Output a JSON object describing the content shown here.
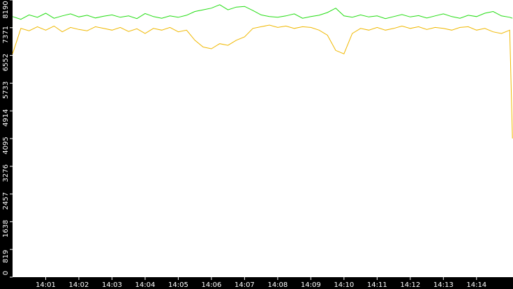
{
  "chart_data": {
    "type": "line",
    "x": [
      "14:00:00",
      "14:00:15",
      "14:00:30",
      "14:00:45",
      "14:01:00",
      "14:01:15",
      "14:01:30",
      "14:01:45",
      "14:02:00",
      "14:02:15",
      "14:02:30",
      "14:02:45",
      "14:03:00",
      "14:03:15",
      "14:03:30",
      "14:03:45",
      "14:04:00",
      "14:04:15",
      "14:04:30",
      "14:04:45",
      "14:05:00",
      "14:05:15",
      "14:05:30",
      "14:05:45",
      "14:06:00",
      "14:06:15",
      "14:06:30",
      "14:06:45",
      "14:07:00",
      "14:07:15",
      "14:07:30",
      "14:07:45",
      "14:08:00",
      "14:08:15",
      "14:08:30",
      "14:08:45",
      "14:09:00",
      "14:09:15",
      "14:09:30",
      "14:09:45",
      "14:10:00",
      "14:10:15",
      "14:10:30",
      "14:10:45",
      "14:11:00",
      "14:11:15",
      "14:11:30",
      "14:11:45",
      "14:12:00",
      "14:12:15",
      "14:12:30",
      "14:12:45",
      "14:13:00",
      "14:13:15",
      "14:13:30",
      "14:13:45",
      "14:14:00",
      "14:14:15",
      "14:14:30",
      "14:14:45",
      "14:15:00",
      "14:15:05"
    ],
    "series": [
      {
        "color": "#22dd11",
        "values": [
          7700,
          7620,
          7750,
          7680,
          7800,
          7650,
          7720,
          7780,
          7690,
          7740,
          7660,
          7710,
          7750,
          7680,
          7720,
          7640,
          7790,
          7700,
          7650,
          7720,
          7680,
          7740,
          7850,
          7900,
          7950,
          8050,
          7900,
          7980,
          8000,
          7880,
          7750,
          7700,
          7680,
          7720,
          7780,
          7650,
          7700,
          7740,
          7820,
          7950,
          7720,
          7680,
          7750,
          7690,
          7720,
          7640,
          7700,
          7760,
          7690,
          7730,
          7660,
          7720,
          7780,
          7700,
          7650,
          7740,
          7700,
          7800,
          7850,
          7720,
          7680,
          7650
        ]
      },
      {
        "color": "#f0b800",
        "values": [
          6600,
          7350,
          7280,
          7400,
          7300,
          7420,
          7250,
          7380,
          7320,
          7280,
          7400,
          7350,
          7300,
          7380,
          7260,
          7340,
          7200,
          7350,
          7300,
          7380,
          7250,
          7300,
          7000,
          6800,
          6750,
          6900,
          6850,
          7000,
          7100,
          7350,
          7400,
          7450,
          7380,
          7420,
          7350,
          7400,
          7380,
          7300,
          7150,
          6700,
          6600,
          7200,
          7350,
          7300,
          7380,
          7300,
          7350,
          7420,
          7350,
          7400,
          7320,
          7380,
          7350,
          7300,
          7380,
          7400,
          7300,
          7350,
          7250,
          7200,
          7300,
          4100
        ]
      }
    ],
    "xlim": [
      "14:00:00",
      "14:15:06"
    ],
    "xticks": [
      "14:01",
      "14:02",
      "14:03",
      "14:04",
      "14:05",
      "14:06",
      "14:07",
      "14:08",
      "14:09",
      "14:10",
      "14:11",
      "14:12",
      "14:13",
      "14:14"
    ],
    "ylim": [
      0,
      8190
    ],
    "yticks": [
      0,
      819,
      1638,
      2457,
      3276,
      4095,
      4914,
      5733,
      6552,
      7371,
      8190
    ]
  }
}
